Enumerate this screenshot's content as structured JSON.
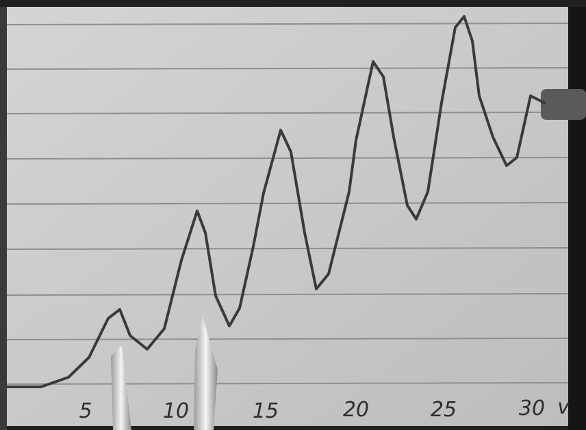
{
  "axis_labels": [
    "5",
    "10",
    "15",
    "20",
    "25",
    "30"
  ],
  "unit": "v"
}
